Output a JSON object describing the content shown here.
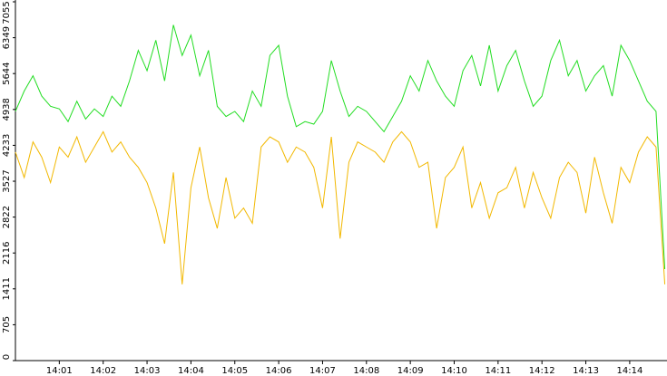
{
  "chart_data": {
    "type": "line",
    "x": [
      0.0,
      0.2,
      0.4,
      0.6,
      0.8,
      1.0,
      1.2,
      1.4,
      1.6,
      1.8,
      2.0,
      2.2,
      2.4,
      2.6,
      2.8,
      3.0,
      3.2,
      3.4,
      3.6,
      3.8,
      4.0,
      4.2,
      4.4,
      4.6,
      4.8,
      5.0,
      5.2,
      5.4,
      5.6,
      5.8,
      6.0,
      6.2,
      6.4,
      6.6,
      6.8,
      7.0,
      7.2,
      7.4,
      7.6,
      7.8,
      8.0,
      8.2,
      8.4,
      8.6,
      8.8,
      9.0,
      9.2,
      9.4,
      9.6,
      9.8,
      10.0,
      10.2,
      10.4,
      10.6,
      10.8,
      11.0,
      11.2,
      11.4,
      11.6,
      11.8,
      12.0,
      12.2,
      12.4,
      12.6,
      12.8,
      13.0,
      13.2,
      13.4,
      13.6,
      13.8,
      14.0,
      14.2,
      14.4,
      14.6,
      14.8
    ],
    "series": [
      {
        "color": "#22dd22",
        "values": [
          4900,
          5300,
          5600,
          5200,
          5000,
          4950,
          4700,
          5100,
          4750,
          4950,
          4800,
          5200,
          5000,
          5500,
          6100,
          5700,
          6300,
          5500,
          6600,
          6000,
          6400,
          5600,
          6100,
          5000,
          4800,
          4900,
          4700,
          5300,
          5000,
          6000,
          6200,
          5200,
          4600,
          4700,
          4650,
          4900,
          5900,
          5300,
          4800,
          5000,
          4900,
          4700,
          4500,
          4800,
          5100,
          5600,
          5300,
          5900,
          5500,
          5200,
          5000,
          5700,
          6000,
          5400,
          6200,
          5300,
          5800,
          6100,
          5500,
          5000,
          5200,
          5900,
          6300,
          5600,
          5900,
          5300,
          5600,
          5800,
          5200,
          6200,
          5900,
          5500,
          5100,
          4900,
          1800
        ]
      },
      {
        "color": "#f2b800",
        "values": [
          4100,
          3600,
          4300,
          4000,
          3500,
          4200,
          4000,
          4400,
          3900,
          4200,
          4500,
          4100,
          4300,
          4000,
          3800,
          3500,
          3000,
          2300,
          3700,
          1500,
          3400,
          4200,
          3200,
          2600,
          3600,
          2800,
          3000,
          2700,
          4200,
          4400,
          4300,
          3900,
          4200,
          4100,
          3800,
          3000,
          4400,
          2400,
          3900,
          4300,
          4200,
          4100,
          3900,
          4300,
          4500,
          4300,
          3800,
          3900,
          2600,
          3600,
          3800,
          4200,
          3000,
          3500,
          2800,
          3300,
          3400,
          3800,
          3000,
          3700,
          3200,
          2800,
          3600,
          3900,
          3700,
          2900,
          4000,
          3300,
          2700,
          3800,
          3500,
          4100,
          4400,
          4200,
          1500
        ]
      }
    ],
    "xlim": [
      0,
      14.85
    ],
    "xticks": [
      {
        "value": 1,
        "label": "14:01"
      },
      {
        "value": 2,
        "label": "14:02"
      },
      {
        "value": 3,
        "label": "14:03"
      },
      {
        "value": 4,
        "label": "14:04"
      },
      {
        "value": 5,
        "label": "14:05"
      },
      {
        "value": 6,
        "label": "14:06"
      },
      {
        "value": 7,
        "label": "14:07"
      },
      {
        "value": 8,
        "label": "14:08"
      },
      {
        "value": 9,
        "label": "14:09"
      },
      {
        "value": 10,
        "label": "14:10"
      },
      {
        "value": 11,
        "label": "14:11"
      },
      {
        "value": 12,
        "label": "14:12"
      },
      {
        "value": 13,
        "label": "14:13"
      },
      {
        "value": 14,
        "label": "14:14"
      }
    ],
    "ylim": [
      0,
      7055
    ],
    "yticks": [
      0,
      705,
      1411,
      2116,
      2822,
      3527,
      4233,
      4938,
      5644,
      6349,
      7055
    ],
    "grid": false
  }
}
